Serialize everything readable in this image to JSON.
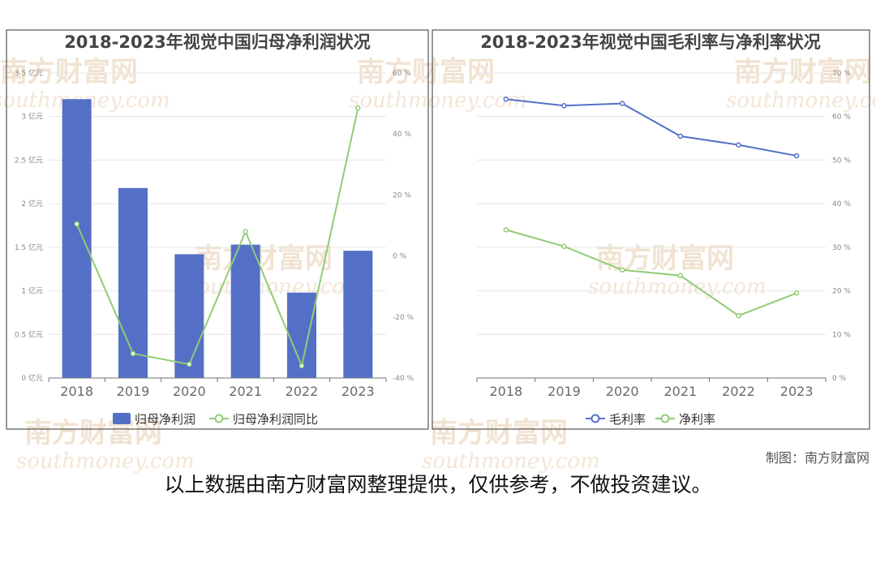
{
  "watermarks": [
    "南方财富网",
    "southmoney.com"
  ],
  "credit": "制图：南方财富网",
  "disclaimer": "以上数据由南方财富网整理提供，仅供参考，不做投资建议。",
  "colors": {
    "bar": "#5470c6",
    "line_green": "#91cc75",
    "line_blue": "#5470c6"
  },
  "chart_data": [
    {
      "type": "bar",
      "title": "2018-2023年视觉中国归母净利润状况",
      "categories": [
        "2018",
        "2019",
        "2020",
        "2021",
        "2022",
        "2023"
      ],
      "y_left": {
        "ylim": [
          0,
          3.5
        ],
        "ticks": [
          "0 亿元",
          "0.5 亿元",
          "1 亿元",
          "1.5 亿元",
          "2 亿元",
          "2.5 亿元",
          "3 亿元",
          "3.5 亿元"
        ]
      },
      "y_right": {
        "ylim": [
          -40,
          60
        ],
        "ticks": [
          "-40 %",
          "-20 %",
          "0 %",
          "20 %",
          "40 %",
          "60 %"
        ]
      },
      "series": [
        {
          "name": "归母净利润",
          "kind": "bar",
          "axis": "left",
          "values": [
            3.2,
            2.18,
            1.42,
            1.53,
            0.98,
            1.46
          ]
        },
        {
          "name": "归母净利润同比",
          "kind": "line",
          "axis": "right",
          "values": [
            10.5,
            -32,
            -35.5,
            8,
            -36,
            48.5
          ]
        }
      ],
      "legend": "bottom",
      "grid": true
    },
    {
      "type": "line",
      "title": "2018-2023年视觉中国毛利率与净利率状况",
      "categories": [
        "2018",
        "2019",
        "2020",
        "2021",
        "2022",
        "2023"
      ],
      "y_right": {
        "ylim": [
          0,
          70
        ],
        "ticks": [
          "0 %",
          "10 %",
          "20 %",
          "30 %",
          "40 %",
          "50 %",
          "60 %",
          "70 %"
        ]
      },
      "series": [
        {
          "name": "毛利率",
          "values": [
            64,
            62.5,
            63,
            55.5,
            53.5,
            51
          ]
        },
        {
          "name": "净利率",
          "values": [
            34,
            30.2,
            24.8,
            23.5,
            14.3,
            19.5
          ]
        }
      ],
      "legend": "bottom",
      "grid": true
    }
  ]
}
